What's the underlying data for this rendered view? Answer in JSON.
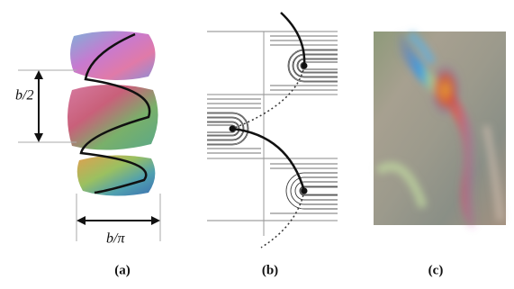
{
  "panels": [
    {
      "label": "(a)",
      "annotations": [
        "b/2",
        "b/π"
      ]
    },
    {
      "label": "(b)"
    },
    {
      "label": "(c)"
    }
  ]
}
